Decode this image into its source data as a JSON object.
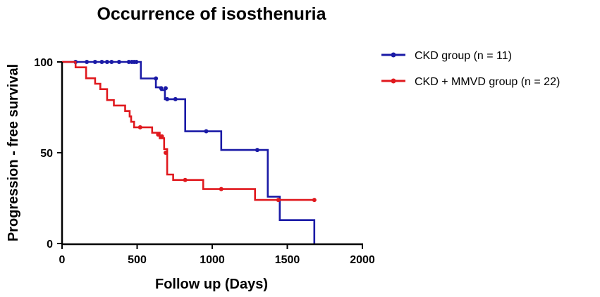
{
  "chart_data": {
    "type": "line",
    "subtype": "kaplan-meier step",
    "title": "Occurrence of isosthenuria",
    "xlabel": "Follow up (Days)",
    "ylabel": "Progression - free survival",
    "xlim": [
      0,
      2000
    ],
    "ylim": [
      0,
      100
    ],
    "xticks": [
      0,
      500,
      1000,
      1500,
      2000
    ],
    "yticks": [
      0,
      50,
      100
    ],
    "xtick_labels": [
      "0",
      "500",
      "1000",
      "1500",
      "2000"
    ],
    "ytick_labels": [
      "0",
      "50",
      "100"
    ],
    "grid": false,
    "legend_position": "top-right",
    "series": [
      {
        "name": "CKD group (n = 11)",
        "color": "#1a1aa6",
        "steps": [
          [
            0,
            100
          ],
          [
            525,
            100
          ],
          [
            525,
            90.9
          ],
          [
            625,
            90.9
          ],
          [
            625,
            86
          ],
          [
            660,
            86
          ],
          [
            660,
            84.5
          ],
          [
            685,
            84.5
          ],
          [
            685,
            79.5
          ],
          [
            820,
            79.5
          ],
          [
            820,
            61.8
          ],
          [
            1060,
            61.8
          ],
          [
            1060,
            51.5
          ],
          [
            1370,
            51.5
          ],
          [
            1370,
            25.8
          ],
          [
            1450,
            25.8
          ],
          [
            1450,
            12.9
          ],
          [
            1680,
            12.9
          ],
          [
            1680,
            0
          ]
        ],
        "censored": [
          [
            90,
            100
          ],
          [
            165,
            100
          ],
          [
            220,
            100
          ],
          [
            265,
            100
          ],
          [
            300,
            100
          ],
          [
            330,
            100
          ],
          [
            380,
            100
          ],
          [
            445,
            100
          ],
          [
            465,
            100
          ],
          [
            480,
            100
          ],
          [
            495,
            100
          ],
          [
            625,
            90.9
          ],
          [
            660,
            85.5
          ],
          [
            690,
            85.5
          ],
          [
            700,
            79.5
          ],
          [
            755,
            79.5
          ],
          [
            960,
            61.8
          ],
          [
            1300,
            51.5
          ]
        ]
      },
      {
        "name": "CKD + MMVD group (n = 22)",
        "color": "#e0191e",
        "steps": [
          [
            0,
            100
          ],
          [
            90,
            100
          ],
          [
            90,
            97
          ],
          [
            160,
            97
          ],
          [
            160,
            91
          ],
          [
            220,
            91
          ],
          [
            220,
            88
          ],
          [
            255,
            88
          ],
          [
            255,
            85
          ],
          [
            300,
            85
          ],
          [
            300,
            79
          ],
          [
            345,
            79
          ],
          [
            345,
            76
          ],
          [
            420,
            76
          ],
          [
            420,
            73
          ],
          [
            450,
            73
          ],
          [
            450,
            70
          ],
          [
            460,
            70
          ],
          [
            460,
            67
          ],
          [
            480,
            67
          ],
          [
            480,
            64
          ],
          [
            600,
            64
          ],
          [
            600,
            61
          ],
          [
            650,
            61
          ],
          [
            650,
            58
          ],
          [
            680,
            58
          ],
          [
            680,
            52
          ],
          [
            700,
            52
          ],
          [
            700,
            38
          ],
          [
            740,
            38
          ],
          [
            740,
            35
          ],
          [
            940,
            35
          ],
          [
            940,
            30
          ],
          [
            1285,
            30
          ],
          [
            1285,
            24
          ],
          [
            1680,
            24
          ]
        ],
        "censored": [
          [
            520,
            64
          ],
          [
            640,
            60
          ],
          [
            665,
            59
          ],
          [
            690,
            50
          ],
          [
            820,
            35
          ],
          [
            1060,
            30
          ],
          [
            1440,
            24
          ],
          [
            1680,
            24
          ]
        ]
      }
    ]
  }
}
